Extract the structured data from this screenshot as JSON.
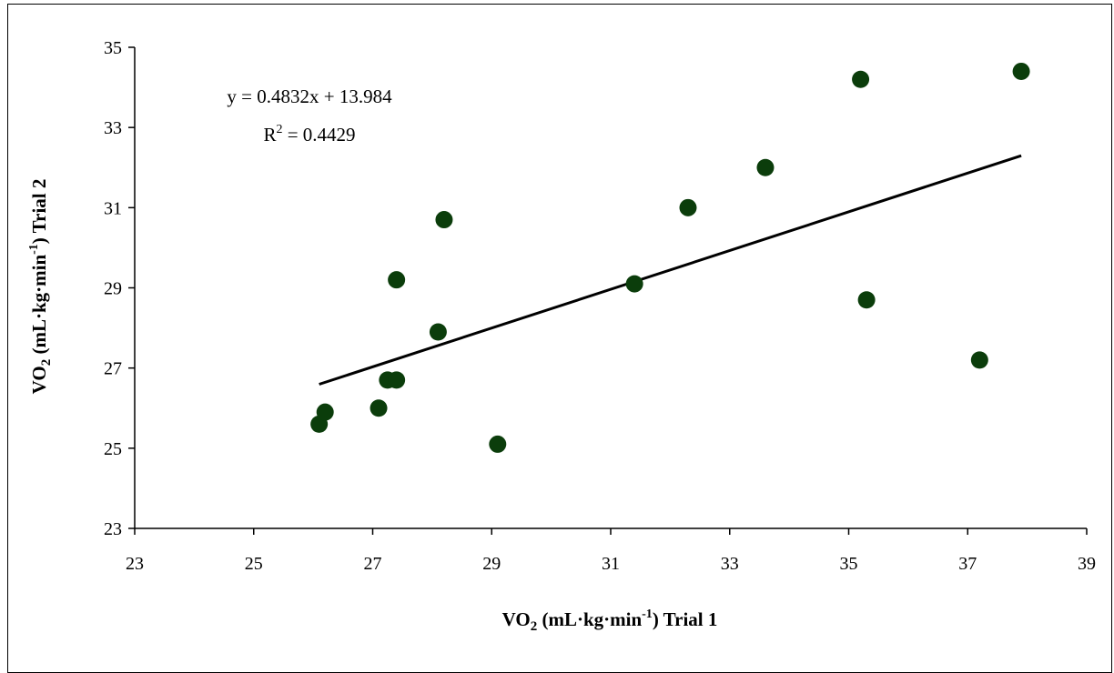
{
  "chart_data": {
    "type": "scatter",
    "title": "",
    "xlabel": {
      "main": "VO",
      "sub": "2",
      "rest1": " (mL·kg·min",
      "sup": "-1",
      "rest2": ") Trial 1"
    },
    "ylabel": {
      "main": "VO",
      "sub": "2",
      "rest1": " (mL·kg·min",
      "sup": "-1",
      "rest2": ") Trial 2"
    },
    "xlim": [
      23,
      39
    ],
    "ylim": [
      23,
      35
    ],
    "xticks": [
      23,
      25,
      27,
      29,
      31,
      33,
      35,
      37,
      39
    ],
    "yticks": [
      23,
      25,
      27,
      29,
      31,
      33,
      35
    ],
    "grid": false,
    "point_color": "#0b3d0b",
    "line_color": "#000000",
    "points": [
      {
        "x": 26.1,
        "y": 25.6
      },
      {
        "x": 26.2,
        "y": 25.9
      },
      {
        "x": 27.1,
        "y": 26.0
      },
      {
        "x": 27.25,
        "y": 26.7
      },
      {
        "x": 27.4,
        "y": 26.7
      },
      {
        "x": 27.4,
        "y": 29.2
      },
      {
        "x": 28.1,
        "y": 27.9
      },
      {
        "x": 28.2,
        "y": 30.7
      },
      {
        "x": 29.1,
        "y": 25.1
      },
      {
        "x": 31.4,
        "y": 29.1
      },
      {
        "x": 32.3,
        "y": 31.0
      },
      {
        "x": 33.6,
        "y": 32.0
      },
      {
        "x": 35.2,
        "y": 34.2
      },
      {
        "x": 35.3,
        "y": 28.7
      },
      {
        "x": 37.2,
        "y": 27.2
      },
      {
        "x": 37.9,
        "y": 34.4
      }
    ],
    "trendline": {
      "slope": 0.4832,
      "intercept": 13.984,
      "x_start": 26.1,
      "x_end": 37.9
    },
    "annotations": {
      "equation": "y = 0.4832x + 13.984",
      "r2_prefix": "R",
      "r2_sup": "2",
      "r2_value": " = 0.4429"
    }
  }
}
